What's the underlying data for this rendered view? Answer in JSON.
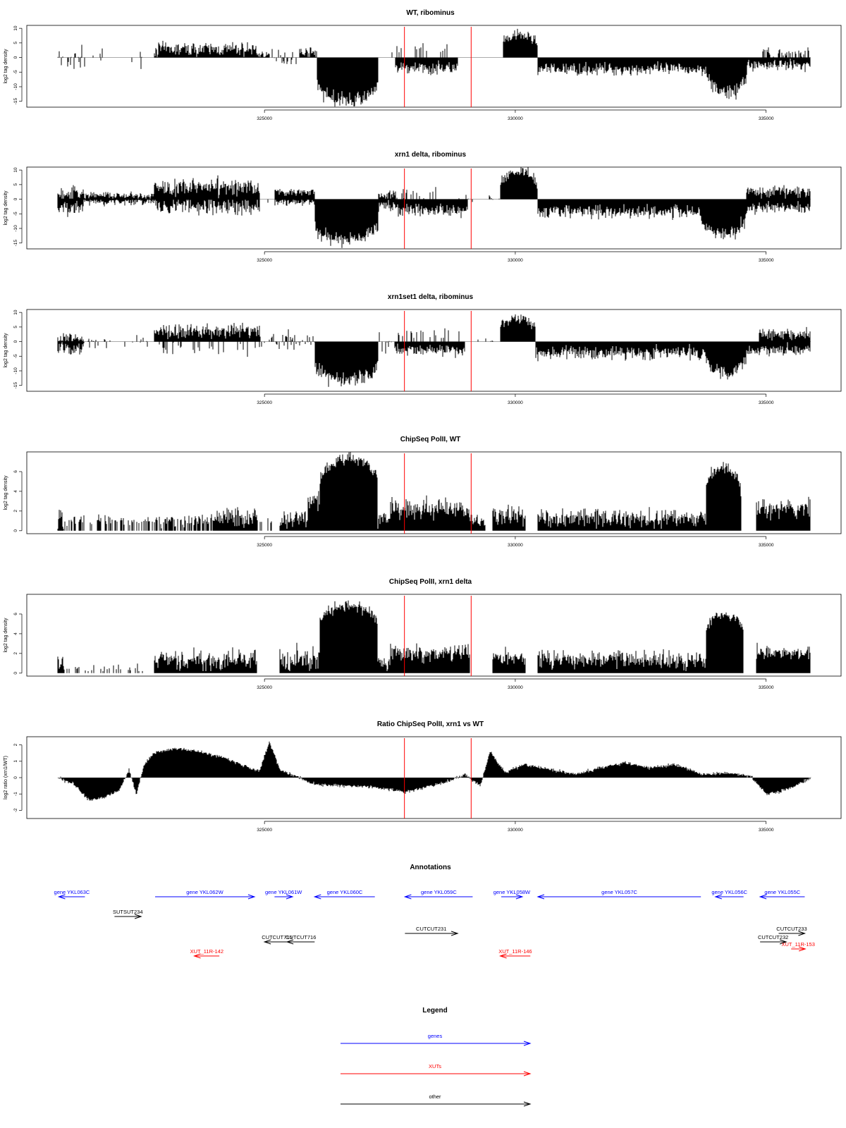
{
  "colors": {
    "gene": "#0000ff",
    "xut": "#ff0000",
    "other": "#000000",
    "marker": "#ff0000",
    "bars": "#000000",
    "axis": "#000000",
    "baseline": "#9e9e9e"
  },
  "xaxis": {
    "domain": [
      320880,
      335890
    ],
    "ticks": [
      325000,
      330000,
      335000
    ],
    "tick_labels": [
      "325000",
      "330000",
      "335000"
    ]
  },
  "markers": [
    327790,
    329120
  ],
  "chart_data": [
    {
      "type": "bar",
      "title": "WT, ribominus",
      "ylabel": "log2 tag density",
      "ylim": [
        -17,
        11
      ],
      "yticks": [
        10,
        5,
        0,
        -5,
        -10,
        -15
      ],
      "segments": [
        {
          "x0": 320880,
          "x1": 321400,
          "style": "sparse",
          "pos_mean": 0.5,
          "neg_mean": -2.5,
          "amp": 2.5,
          "density": 0.5
        },
        {
          "x0": 321400,
          "x1": 322800,
          "style": "sparse",
          "pos_mean": 0.5,
          "neg_mean": -1.5,
          "amp": 1.5,
          "density": 0.06
        },
        {
          "x0": 322800,
          "x1": 324850,
          "style": "pos",
          "pos_mean": 2.8,
          "amp": 1.8
        },
        {
          "x0": 324850,
          "x1": 325100,
          "style": "pos",
          "pos_mean": 1.0,
          "amp": 1.0
        },
        {
          "x0": 325100,
          "x1": 325700,
          "style": "sparse",
          "pos_mean": 1.5,
          "neg_mean": -1.0,
          "amp": 1.5,
          "density": 0.35
        },
        {
          "x0": 325700,
          "x1": 326050,
          "style": "pos",
          "pos_mean": 1.8,
          "amp": 1.2
        },
        {
          "x0": 326050,
          "x1": 327270,
          "style": "dome",
          "sign": -1,
          "peak": 14.5,
          "shoulder": 7,
          "amp": 2
        },
        {
          "x0": 327270,
          "x1": 327600,
          "style": "sparse",
          "pos_mean": 1.5,
          "neg_mean": -1.0,
          "amp": 2.0,
          "density": 0.2
        },
        {
          "x0": 327600,
          "x1": 328850,
          "style": "neg",
          "neg_mean": -3.5,
          "amp": 1.5,
          "spikes_up": 0.18,
          "up_mean": 2.5
        },
        {
          "x0": 328850,
          "x1": 329750,
          "style": "sparse",
          "pos_mean": 0.5,
          "neg_mean": -1.0,
          "amp": 1.0,
          "density": 0.05
        },
        {
          "x0": 329750,
          "x1": 330450,
          "style": "dome",
          "sign": 1,
          "peak": 7.5,
          "shoulder": 3,
          "amp": 1.5
        },
        {
          "x0": 330450,
          "x1": 333800,
          "style": "neg",
          "neg_mean": -4.0,
          "amp": 1.6
        },
        {
          "x0": 333800,
          "x1": 334620,
          "style": "dome",
          "sign": -1,
          "peak": 11.5,
          "shoulder": 4,
          "amp": 2
        },
        {
          "x0": 334620,
          "x1": 334900,
          "style": "neg",
          "neg_mean": -2.5,
          "amp": 1.5
        },
        {
          "x0": 334900,
          "x1": 335890,
          "style": "neg",
          "neg_mean": -2.5,
          "amp": 1.5,
          "spikes_up": 0.4,
          "up_mean": 2.0
        }
      ]
    },
    {
      "type": "bar",
      "title": "xrn1 delta, ribominus",
      "ylabel": "log2 tag density",
      "ylim": [
        -17,
        11
      ],
      "yticks": [
        10,
        5,
        0,
        -5,
        -10,
        -15
      ],
      "segments": [
        {
          "x0": 320880,
          "x1": 321400,
          "style": "mixed",
          "pos_mean": 2.0,
          "neg_mean": -3.0,
          "amp": 1.8
        },
        {
          "x0": 321400,
          "x1": 322800,
          "style": "mixed",
          "pos_mean": 1.2,
          "neg_mean": -0.8,
          "amp": 1.0
        },
        {
          "x0": 322800,
          "x1": 324900,
          "style": "mixed",
          "pos_mean": 4.2,
          "neg_mean": -2.5,
          "amp": 2.2
        },
        {
          "x0": 324900,
          "x1": 325200,
          "style": "sparse",
          "pos_mean": 1.0,
          "neg_mean": -0.5,
          "amp": 1.0,
          "density": 0.2
        },
        {
          "x0": 325200,
          "x1": 326000,
          "style": "mixed",
          "pos_mean": 2.5,
          "neg_mean": -1.0,
          "amp": 1.0
        },
        {
          "x0": 326000,
          "x1": 327270,
          "style": "dome",
          "sign": -1,
          "peak": 13.5,
          "shoulder": 7,
          "amp": 2
        },
        {
          "x0": 327270,
          "x1": 327600,
          "style": "mixed",
          "pos_mean": 1.5,
          "neg_mean": -2.0,
          "amp": 1.5
        },
        {
          "x0": 327600,
          "x1": 329050,
          "style": "neg",
          "neg_mean": -3.8,
          "amp": 1.8,
          "spikes_up": 0.12,
          "up_mean": 1.5
        },
        {
          "x0": 329050,
          "x1": 329700,
          "style": "sparse",
          "pos_mean": 0.6,
          "neg_mean": -1.0,
          "amp": 1.0,
          "density": 0.1
        },
        {
          "x0": 329700,
          "x1": 330450,
          "style": "dome",
          "sign": 1,
          "peak": 9.5,
          "shoulder": 3,
          "amp": 1.5
        },
        {
          "x0": 330450,
          "x1": 333700,
          "style": "neg",
          "neg_mean": -4.2,
          "amp": 1.8
        },
        {
          "x0": 333700,
          "x1": 334600,
          "style": "dome",
          "sign": -1,
          "peak": 12,
          "shoulder": 4,
          "amp": 2
        },
        {
          "x0": 334600,
          "x1": 335890,
          "style": "mixed",
          "pos_mean": 2.5,
          "neg_mean": -3.0,
          "amp": 1.5
        }
      ]
    },
    {
      "type": "bar",
      "title": "xrn1set1 delta, ribominus",
      "ylabel": "log2 tag density",
      "ylim": [
        -17,
        11
      ],
      "yticks": [
        10,
        5,
        0,
        -5,
        -10,
        -15
      ],
      "segments": [
        {
          "x0": 320880,
          "x1": 321400,
          "style": "mixed",
          "pos_mean": 1.2,
          "neg_mean": -2.5,
          "amp": 1.5
        },
        {
          "x0": 321400,
          "x1": 322800,
          "style": "sparse",
          "pos_mean": 1.0,
          "neg_mean": -1.5,
          "amp": 1.2,
          "density": 0.2
        },
        {
          "x0": 322800,
          "x1": 324900,
          "style": "pos",
          "pos_mean": 3.5,
          "amp": 2.0,
          "spikes_down": 0.18,
          "down_mean": -2.0
        },
        {
          "x0": 324900,
          "x1": 326000,
          "style": "sparse",
          "pos_mean": 2.0,
          "neg_mean": -1.5,
          "amp": 1.5,
          "density": 0.4
        },
        {
          "x0": 326000,
          "x1": 327270,
          "style": "dome",
          "sign": -1,
          "peak": 13,
          "shoulder": 6,
          "amp": 2
        },
        {
          "x0": 327270,
          "x1": 327600,
          "style": "sparse",
          "pos_mean": 1.5,
          "neg_mean": -1.0,
          "amp": 2.0,
          "density": 0.3
        },
        {
          "x0": 327600,
          "x1": 329000,
          "style": "neg",
          "neg_mean": -3.0,
          "amp": 1.5,
          "spikes_up": 0.2,
          "up_mean": 2.5
        },
        {
          "x0": 329000,
          "x1": 329700,
          "style": "sparse",
          "pos_mean": 0.5,
          "neg_mean": -1.0,
          "amp": 1.0,
          "density": 0.05
        },
        {
          "x0": 329700,
          "x1": 330400,
          "style": "dome",
          "sign": 1,
          "peak": 8,
          "shoulder": 3,
          "amp": 1.5
        },
        {
          "x0": 330400,
          "x1": 333800,
          "style": "neg",
          "neg_mean": -3.8,
          "amp": 1.8
        },
        {
          "x0": 333800,
          "x1": 334600,
          "style": "dome",
          "sign": -1,
          "peak": 11,
          "shoulder": 4,
          "amp": 2
        },
        {
          "x0": 334600,
          "x1": 334850,
          "style": "neg",
          "neg_mean": -3.0,
          "amp": 1.5
        },
        {
          "x0": 334850,
          "x1": 335890,
          "style": "mixed",
          "pos_mean": 2.5,
          "neg_mean": -2.5,
          "amp": 1.5
        }
      ]
    },
    {
      "type": "bar",
      "title": "ChipSeq PolII, WT",
      "ylabel": "log2 tag density",
      "ylim": [
        -0.3,
        8
      ],
      "yticks": [
        0,
        2,
        4,
        6
      ],
      "segments": [
        {
          "x0": 320880,
          "x1": 321000,
          "style": "pos",
          "pos_mean": 1.2,
          "amp": 1.0
        },
        {
          "x0": 321000,
          "x1": 322800,
          "style": "sparse",
          "pos_mean": 1.0,
          "amp": 0.4,
          "density": 0.45
        },
        {
          "x0": 322800,
          "x1": 324000,
          "style": "sparse",
          "pos_mean": 1.0,
          "amp": 0.5,
          "density": 0.6
        },
        {
          "x0": 324000,
          "x1": 324850,
          "style": "pos",
          "pos_mean": 1.4,
          "amp": 0.8
        },
        {
          "x0": 324850,
          "x1": 325300,
          "style": "sparse",
          "pos_mean": 1.0,
          "amp": 0.3,
          "density": 0.15
        },
        {
          "x0": 325300,
          "x1": 325850,
          "style": "pos",
          "pos_mean": 1.3,
          "amp": 0.8
        },
        {
          "x0": 325850,
          "x1": 326100,
          "style": "pos",
          "pos_mean": 2.8,
          "amp": 1.2
        },
        {
          "x0": 326100,
          "x1": 327250,
          "style": "dome",
          "sign": 1,
          "peak": 7.3,
          "shoulder": 4.5,
          "amp": 0.5
        },
        {
          "x0": 327250,
          "x1": 327500,
          "style": "pos",
          "pos_mean": 1.2,
          "amp": 0.6
        },
        {
          "x0": 327500,
          "x1": 329100,
          "style": "pos",
          "pos_mean": 2.2,
          "amp": 0.8
        },
        {
          "x0": 329100,
          "x1": 329400,
          "style": "pos",
          "pos_mean": 1.0,
          "amp": 0.5
        },
        {
          "x0": 329400,
          "x1": 329550,
          "style": "gap"
        },
        {
          "x0": 329550,
          "x1": 330200,
          "style": "pos",
          "pos_mean": 1.5,
          "amp": 0.8
        },
        {
          "x0": 330200,
          "x1": 330450,
          "style": "gap"
        },
        {
          "x0": 330450,
          "x1": 333800,
          "style": "pos",
          "pos_mean": 1.3,
          "amp": 0.7
        },
        {
          "x0": 333800,
          "x1": 334500,
          "style": "dome",
          "sign": 1,
          "peak": 6.3,
          "shoulder": 3.5,
          "amp": 0.5
        },
        {
          "x0": 334500,
          "x1": 334800,
          "style": "gap"
        },
        {
          "x0": 334800,
          "x1": 335890,
          "style": "pos",
          "pos_mean": 2.2,
          "amp": 0.7
        }
      ]
    },
    {
      "type": "bar",
      "title": "ChipSeq PolII, xrn1 delta",
      "ylabel": "log2 tag density",
      "ylim": [
        -0.3,
        8
      ],
      "yticks": [
        0,
        2,
        4,
        6
      ],
      "segments": [
        {
          "x0": 320880,
          "x1": 321000,
          "style": "pos",
          "pos_mean": 1.2,
          "amp": 0.6
        },
        {
          "x0": 321000,
          "x1": 322800,
          "style": "sparse",
          "pos_mean": 0.5,
          "amp": 0.3,
          "density": 0.25
        },
        {
          "x0": 322800,
          "x1": 324850,
          "style": "pos",
          "pos_mean": 1.3,
          "amp": 0.8
        },
        {
          "x0": 324850,
          "x1": 325300,
          "style": "gap"
        },
        {
          "x0": 325300,
          "x1": 326100,
          "style": "pos",
          "pos_mean": 1.4,
          "amp": 1.0
        },
        {
          "x0": 326100,
          "x1": 327250,
          "style": "dome",
          "sign": 1,
          "peak": 6.8,
          "shoulder": 4.5,
          "amp": 0.4
        },
        {
          "x0": 327250,
          "x1": 327500,
          "style": "pos",
          "pos_mean": 1.0,
          "amp": 0.6
        },
        {
          "x0": 327500,
          "x1": 329100,
          "style": "pos",
          "pos_mean": 2.0,
          "amp": 0.7
        },
        {
          "x0": 329100,
          "x1": 329550,
          "style": "gap"
        },
        {
          "x0": 329550,
          "x1": 330200,
          "style": "pos",
          "pos_mean": 1.6,
          "amp": 0.6
        },
        {
          "x0": 330200,
          "x1": 330450,
          "style": "gap"
        },
        {
          "x0": 330450,
          "x1": 333800,
          "style": "pos",
          "pos_mean": 1.4,
          "amp": 0.7
        },
        {
          "x0": 333800,
          "x1": 334550,
          "style": "dome",
          "sign": 1,
          "peak": 6.0,
          "shoulder": 3.5,
          "amp": 0.4
        },
        {
          "x0": 334550,
          "x1": 334800,
          "style": "gap"
        },
        {
          "x0": 334800,
          "x1": 335890,
          "style": "pos",
          "pos_mean": 2.0,
          "amp": 0.6
        }
      ]
    },
    {
      "type": "area",
      "title": "Ratio ChipSeq PolII, xrn1 vs WT",
      "ylabel": "log2 ratio (xrn1/WT)",
      "ylim": [
        -2.5,
        2.5
      ],
      "yticks": [
        2,
        1,
        0,
        -1,
        -2
      ],
      "x": [
        320880,
        321200,
        321500,
        321800,
        322100,
        322300,
        322450,
        322600,
        322800,
        323200,
        323700,
        324200,
        324700,
        324900,
        325100,
        325300,
        325600,
        326000,
        326500,
        327000,
        327500,
        327800,
        328200,
        328600,
        329000,
        329300,
        329500,
        329800,
        330200,
        330700,
        331200,
        331700,
        332200,
        332700,
        333200,
        333700,
        334200,
        334700,
        335000,
        335200,
        335500,
        335890
      ],
      "y": [
        0.0,
        -0.4,
        -1.4,
        -1.2,
        -0.8,
        0.5,
        -1.0,
        0.8,
        1.5,
        1.8,
        1.6,
        1.2,
        0.6,
        0.4,
        2.2,
        0.5,
        0.1,
        -0.4,
        -0.5,
        -0.55,
        -0.7,
        -0.9,
        -0.6,
        -0.3,
        0.2,
        -0.5,
        1.6,
        0.3,
        0.8,
        0.5,
        0.2,
        0.6,
        0.9,
        0.6,
        0.8,
        0.2,
        0.3,
        0.1,
        -1.0,
        -0.9,
        -0.6,
        0.0
      ]
    }
  ],
  "annotations": {
    "title": "Annotations",
    "rows": [
      [
        {
          "label": "gene YKL063C",
          "type": "gene",
          "strand": "-",
          "start": 320900,
          "end": 321420
        },
        {
          "label": "gene YKL062W",
          "type": "gene",
          "strand": "+",
          "start": 322820,
          "end": 324800
        },
        {
          "label": "gene YKL061W",
          "type": "gene",
          "strand": "+",
          "start": 325200,
          "end": 325560
        },
        {
          "label": "gene YKL060C",
          "type": "gene",
          "strand": "-",
          "start": 326000,
          "end": 327200
        },
        {
          "label": "gene YKL059C",
          "type": "gene",
          "strand": "-",
          "start": 327800,
          "end": 329150
        },
        {
          "label": "gene YKL058W",
          "type": "gene",
          "strand": "+",
          "start": 329720,
          "end": 330140
        },
        {
          "label": "gene YKL057C",
          "type": "gene",
          "strand": "-",
          "start": 330450,
          "end": 333700
        },
        {
          "label": "gene YKL056C",
          "type": "gene",
          "strand": "-",
          "start": 333990,
          "end": 334550
        },
        {
          "label": "gene YKL055C",
          "type": "gene",
          "strand": "-",
          "start": 334880,
          "end": 335770
        }
      ],
      [
        {
          "label": "SUTSUT234",
          "type": "other",
          "strand": "+",
          "start": 322010,
          "end": 322540
        }
      ],
      [
        {
          "label": "CUTCUT231",
          "type": "other",
          "strand": "+",
          "start": 327800,
          "end": 328850
        },
        {
          "label": "CUTCUT233",
          "type": "other",
          "strand": "+",
          "start": 335250,
          "end": 335770
        }
      ],
      [
        {
          "label": "CUTCUT715",
          "type": "other",
          "strand": "-",
          "start": 325000,
          "end": 325500
        },
        {
          "label": "CUTCUT716",
          "type": "other",
          "strand": "-",
          "start": 325450,
          "end": 326000
        },
        {
          "label": "CUTCUT232",
          "type": "other",
          "strand": "+",
          "start": 334880,
          "end": 335400
        }
      ],
      [
        {
          "label": "XUT_11R-153",
          "type": "xut",
          "strand": "+",
          "start": 335500,
          "end": 335780
        }
      ],
      [
        {
          "label": "XUT_11R-142",
          "type": "xut",
          "strand": "-",
          "start": 323600,
          "end": 324100
        },
        {
          "label": "XUT_11R-146",
          "type": "xut",
          "strand": "-",
          "start": 329700,
          "end": 330300
        }
      ]
    ]
  },
  "legend": {
    "title": "Legend",
    "items": [
      {
        "label": "genes",
        "type": "gene"
      },
      {
        "label": "XUTs",
        "type": "xut"
      },
      {
        "label": "other",
        "type": "other"
      }
    ]
  }
}
